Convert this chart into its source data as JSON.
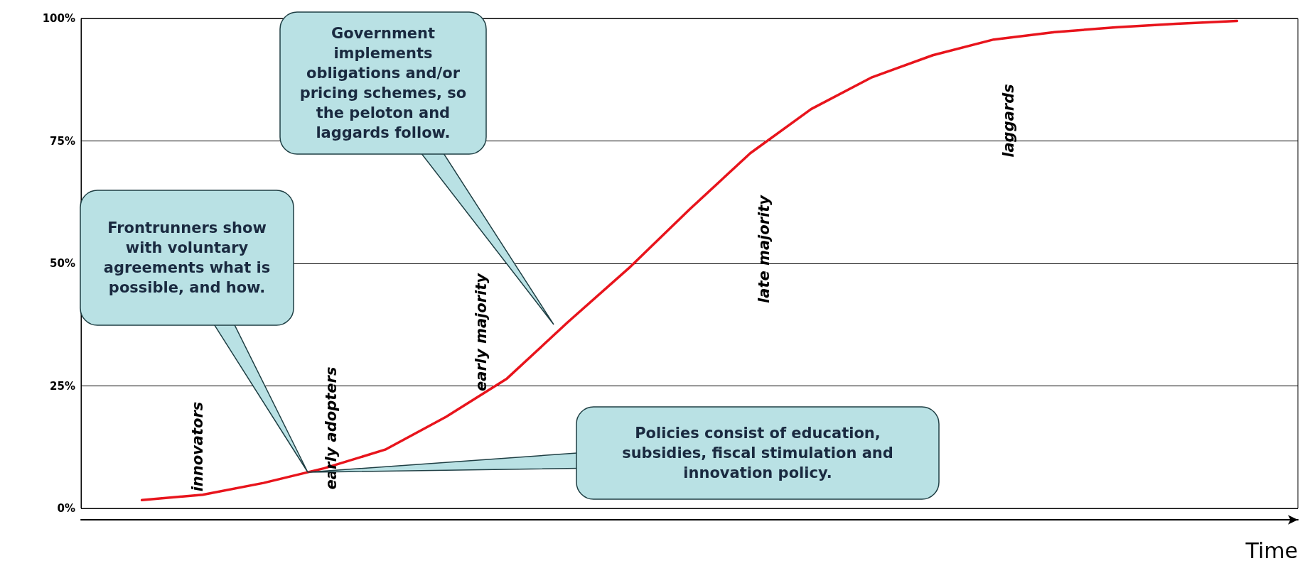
{
  "chart_data": {
    "type": "line",
    "xlabel": "Time",
    "categories": [
      null,
      null,
      null,
      null,
      null,
      null,
      null,
      null,
      null,
      null,
      null,
      null,
      null,
      null,
      null,
      null,
      null,
      null,
      null,
      null,
      null
    ],
    "series": [
      {
        "color": "#e8141c",
        "values": [
          null,
          1.7,
          2.8,
          5.2,
          8.2,
          12,
          18.7,
          26.5,
          38,
          49,
          61,
          72.5,
          81.5,
          88,
          92.5,
          95.7,
          97.2,
          98.2,
          98.9,
          99.5,
          null
        ]
      }
    ],
    "ylim": [
      0,
      100
    ],
    "yticks": [
      {
        "value": 0,
        "label": "0%"
      },
      {
        "value": 25,
        "label": "25%"
      },
      {
        "value": 50,
        "label": "50%"
      },
      {
        "value": 75,
        "label": "75%"
      },
      {
        "value": 100,
        "label": "100%"
      }
    ],
    "tick_labels": "y",
    "grid": "y",
    "marker": "none",
    "line_style": "solid",
    "annotations": [
      "Frontrunners show with voluntary agreements what is possible, and how.",
      "Government implements obligations and/or pricing schemes, so the peloton and laggards follow.",
      "Policies consist of education, subsidies, fiscal stimulation and innovation policy.",
      "innovators",
      "early adopters",
      "early majority",
      "late majority",
      "laggards"
    ]
  }
}
